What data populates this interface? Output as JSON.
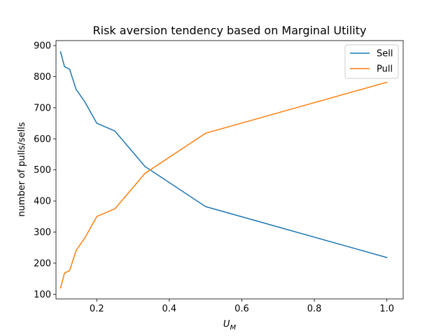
{
  "chart_data": {
    "type": "line",
    "title": "Risk aversion tendency based on Marginal Utility",
    "xlabel_main": "U",
    "xlabel_sub": "M",
    "ylabel": "number of pulls/sells",
    "xlim": [
      0.0875,
      1.045
    ],
    "ylim": [
      85,
      916
    ],
    "xticks": [
      0.2,
      0.4,
      0.6,
      0.8,
      1.0
    ],
    "xtick_labels": [
      "0.2",
      "0.4",
      "0.6",
      "0.8",
      "1.0"
    ],
    "yticks": [
      100,
      200,
      300,
      400,
      500,
      600,
      700,
      800,
      900
    ],
    "ytick_labels": [
      "100",
      "200",
      "300",
      "400",
      "500",
      "600",
      "700",
      "800",
      "900"
    ],
    "grid": false,
    "legend_position": "top-right",
    "series": [
      {
        "name": "Sell",
        "color": "#1f77b4",
        "x": [
          0.1,
          0.111,
          0.125,
          0.143,
          0.167,
          0.2,
          0.25,
          0.333,
          0.5,
          1.0
        ],
        "y": [
          880,
          832,
          824,
          759,
          719,
          650,
          625,
          511,
          382,
          218
        ]
      },
      {
        "name": "Pull",
        "color": "#ff7f0e",
        "x": [
          0.1,
          0.111,
          0.125,
          0.143,
          0.167,
          0.2,
          0.25,
          0.333,
          0.5,
          1.0
        ],
        "y": [
          120,
          168,
          176,
          241,
          281,
          350,
          375,
          489,
          618,
          782
        ]
      }
    ]
  }
}
